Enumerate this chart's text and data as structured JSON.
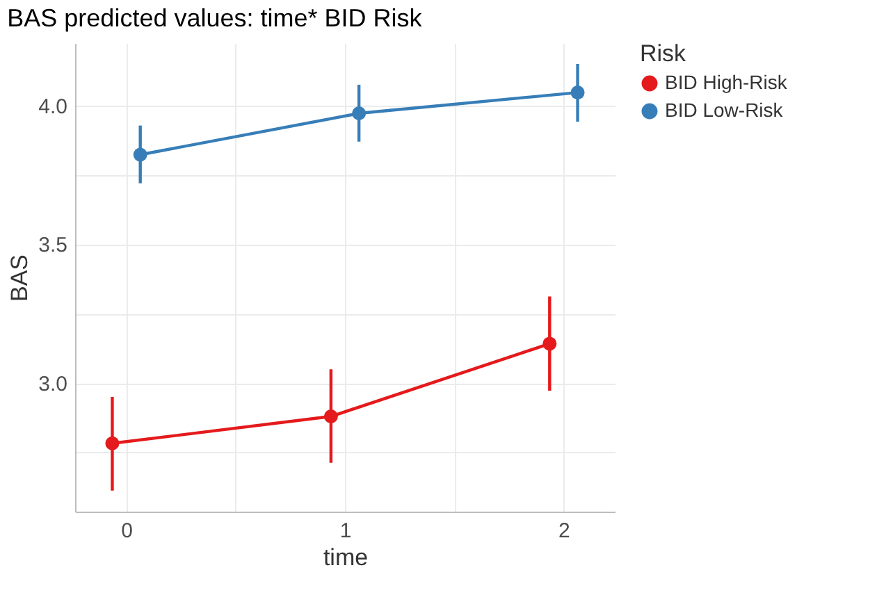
{
  "chart_data": {
    "type": "line",
    "title": "BAS predicted values: time* BID Risk",
    "xlabel": "time",
    "ylabel": "BAS",
    "legend_title": "Risk",
    "xlim": [
      -0.234,
      2.234
    ],
    "xticks": [
      0,
      {
        "value": 0.5,
        "label": null
      },
      1,
      {
        "value": 1.5,
        "label": null
      },
      2
    ],
    "ylim": [
      2.537,
      4.225
    ],
    "yticks": [
      {
        "value": 2.75,
        "label": null
      },
      {
        "value": 3,
        "label": "3.0"
      },
      {
        "value": 3.25,
        "label": null
      },
      3.5,
      {
        "value": 3.75,
        "label": null
      },
      {
        "value": 4,
        "label": "4.0"
      }
    ],
    "series": [
      {
        "name": "BID High-Risk",
        "color": "#e41a1c",
        "x": [
          -0.064,
          0.936,
          1.936
        ],
        "values": [
          2.783,
          2.88,
          3.142
        ],
        "errors": [
          [
            2.613,
            2.95
          ],
          [
            2.713,
            3.05
          ],
          [
            2.973,
            3.312
          ]
        ]
      },
      {
        "name": "BID Low-Risk",
        "color": "#377eb8",
        "x": [
          0.064,
          1.064,
          2.064
        ],
        "values": [
          3.823,
          3.972,
          4.047
        ],
        "errors": [
          [
            3.72,
            3.928
          ],
          [
            3.87,
            4.075
          ],
          [
            3.942,
            4.15
          ]
        ]
      }
    ],
    "grid": true,
    "legend": "right",
    "marker": "circle",
    "line_style": "solid"
  }
}
